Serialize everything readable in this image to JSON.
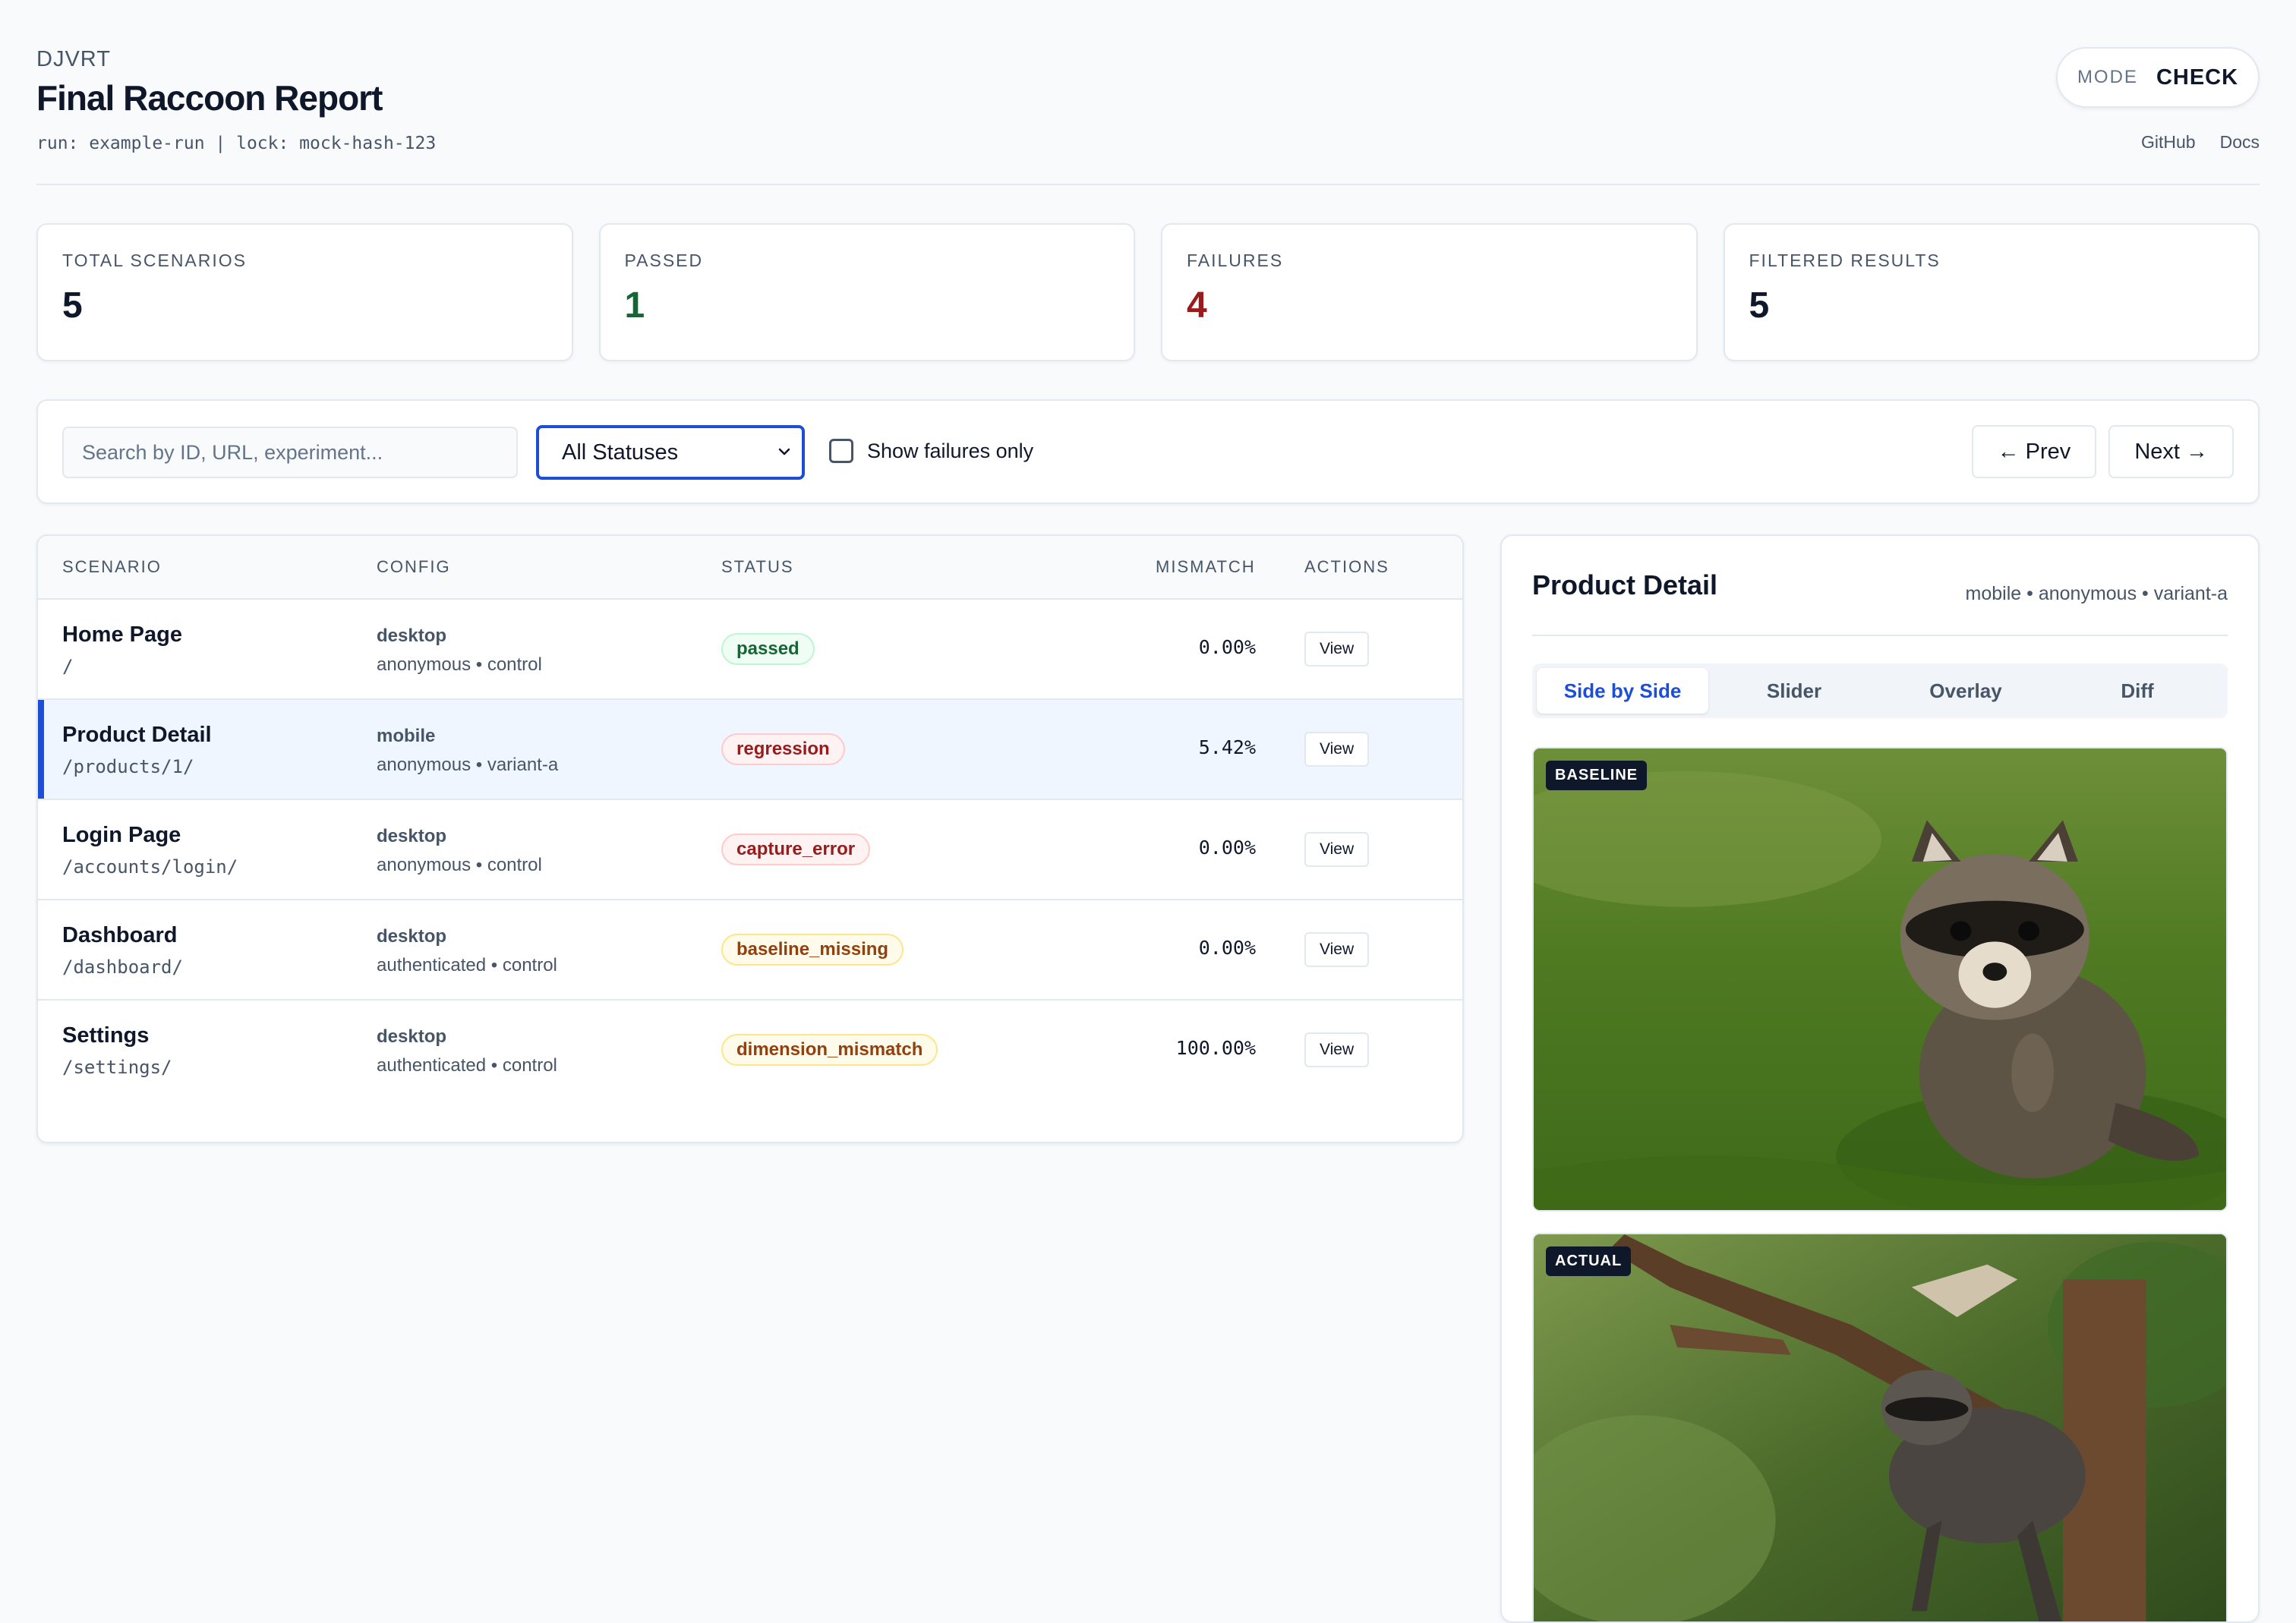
{
  "header": {
    "brand": "DJVRT",
    "title": "Final Raccoon Report",
    "run_info": "run: example-run | lock: mock-hash-123",
    "mode_label": "MODE",
    "mode_value": "CHECK",
    "links": [
      "GitHub",
      "Docs"
    ]
  },
  "stats": [
    {
      "label": "TOTAL SCENARIOS",
      "value": "5",
      "color": "#0f172a"
    },
    {
      "label": "PASSED",
      "value": "1",
      "color": "#166534"
    },
    {
      "label": "FAILURES",
      "value": "4",
      "color": "#991b1b"
    },
    {
      "label": "FILTERED RESULTS",
      "value": "5",
      "color": "#0f172a"
    }
  ],
  "toolbar": {
    "search_placeholder": "Search by ID, URL, experiment...",
    "status_select": "All Statuses",
    "failures_only_label": "Show failures only",
    "prev_label": "← Prev",
    "next_label": "Next →"
  },
  "table": {
    "columns": [
      "SCENARIO",
      "CONFIG",
      "STATUS",
      "MISMATCH",
      "ACTIONS"
    ],
    "view_label": "View",
    "rows": [
      {
        "name": "Home Page",
        "path": "/",
        "config": "desktop",
        "config_sub": "anonymous • control",
        "status": "passed",
        "mismatch": "0.00%"
      },
      {
        "name": "Product Detail",
        "path": "/products/1/",
        "config": "mobile",
        "config_sub": "anonymous • variant-a",
        "status": "regression",
        "mismatch": "5.42%"
      },
      {
        "name": "Login Page",
        "path": "/accounts/login/",
        "config": "desktop",
        "config_sub": "anonymous • control",
        "status": "capture_error",
        "mismatch": "0.00%"
      },
      {
        "name": "Dashboard",
        "path": "/dashboard/",
        "config": "desktop",
        "config_sub": "authenticated • control",
        "status": "baseline_missing",
        "mismatch": "0.00%"
      },
      {
        "name": "Settings",
        "path": "/settings/",
        "config": "desktop",
        "config_sub": "authenticated • control",
        "status": "dimension_mismatch",
        "mismatch": "100.00%"
      }
    ]
  },
  "detail": {
    "title": "Product Detail",
    "meta": "mobile • anonymous • variant-a",
    "tabs": [
      "Side by Side",
      "Slider",
      "Overlay",
      "Diff"
    ],
    "baseline_tag": "BASELINE",
    "actual_tag": "ACTUAL"
  }
}
